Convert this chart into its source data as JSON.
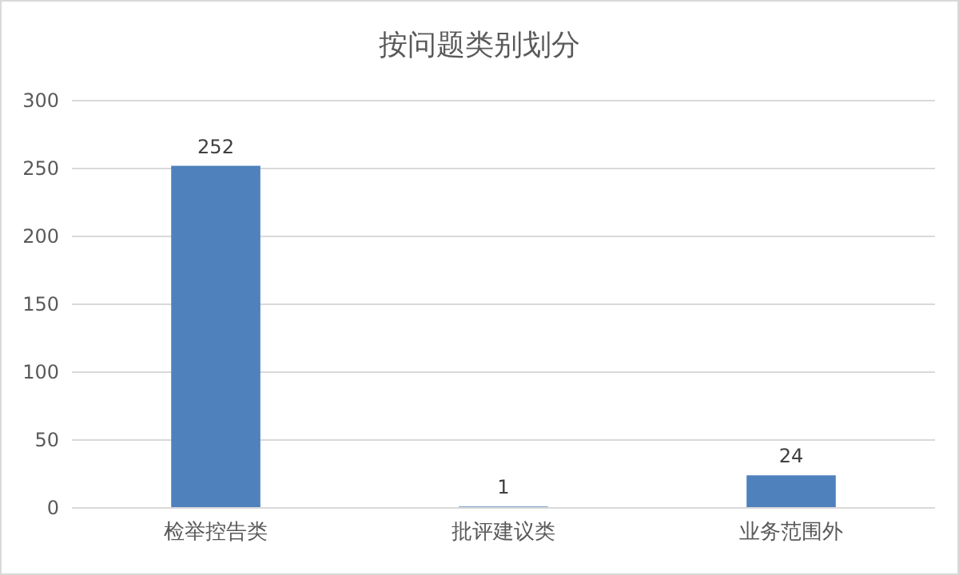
{
  "chart_data": {
    "type": "bar",
    "title": "按问题类别划分",
    "categories": [
      "检举控告类",
      "批评建议类",
      "业务范围外"
    ],
    "values": [
      252,
      1,
      24
    ],
    "color": "#4f81bd",
    "ylim": [
      0,
      300
    ],
    "yticks": [
      0,
      50,
      100,
      150,
      200,
      250,
      300
    ],
    "grid": "y",
    "data_labels": true
  }
}
